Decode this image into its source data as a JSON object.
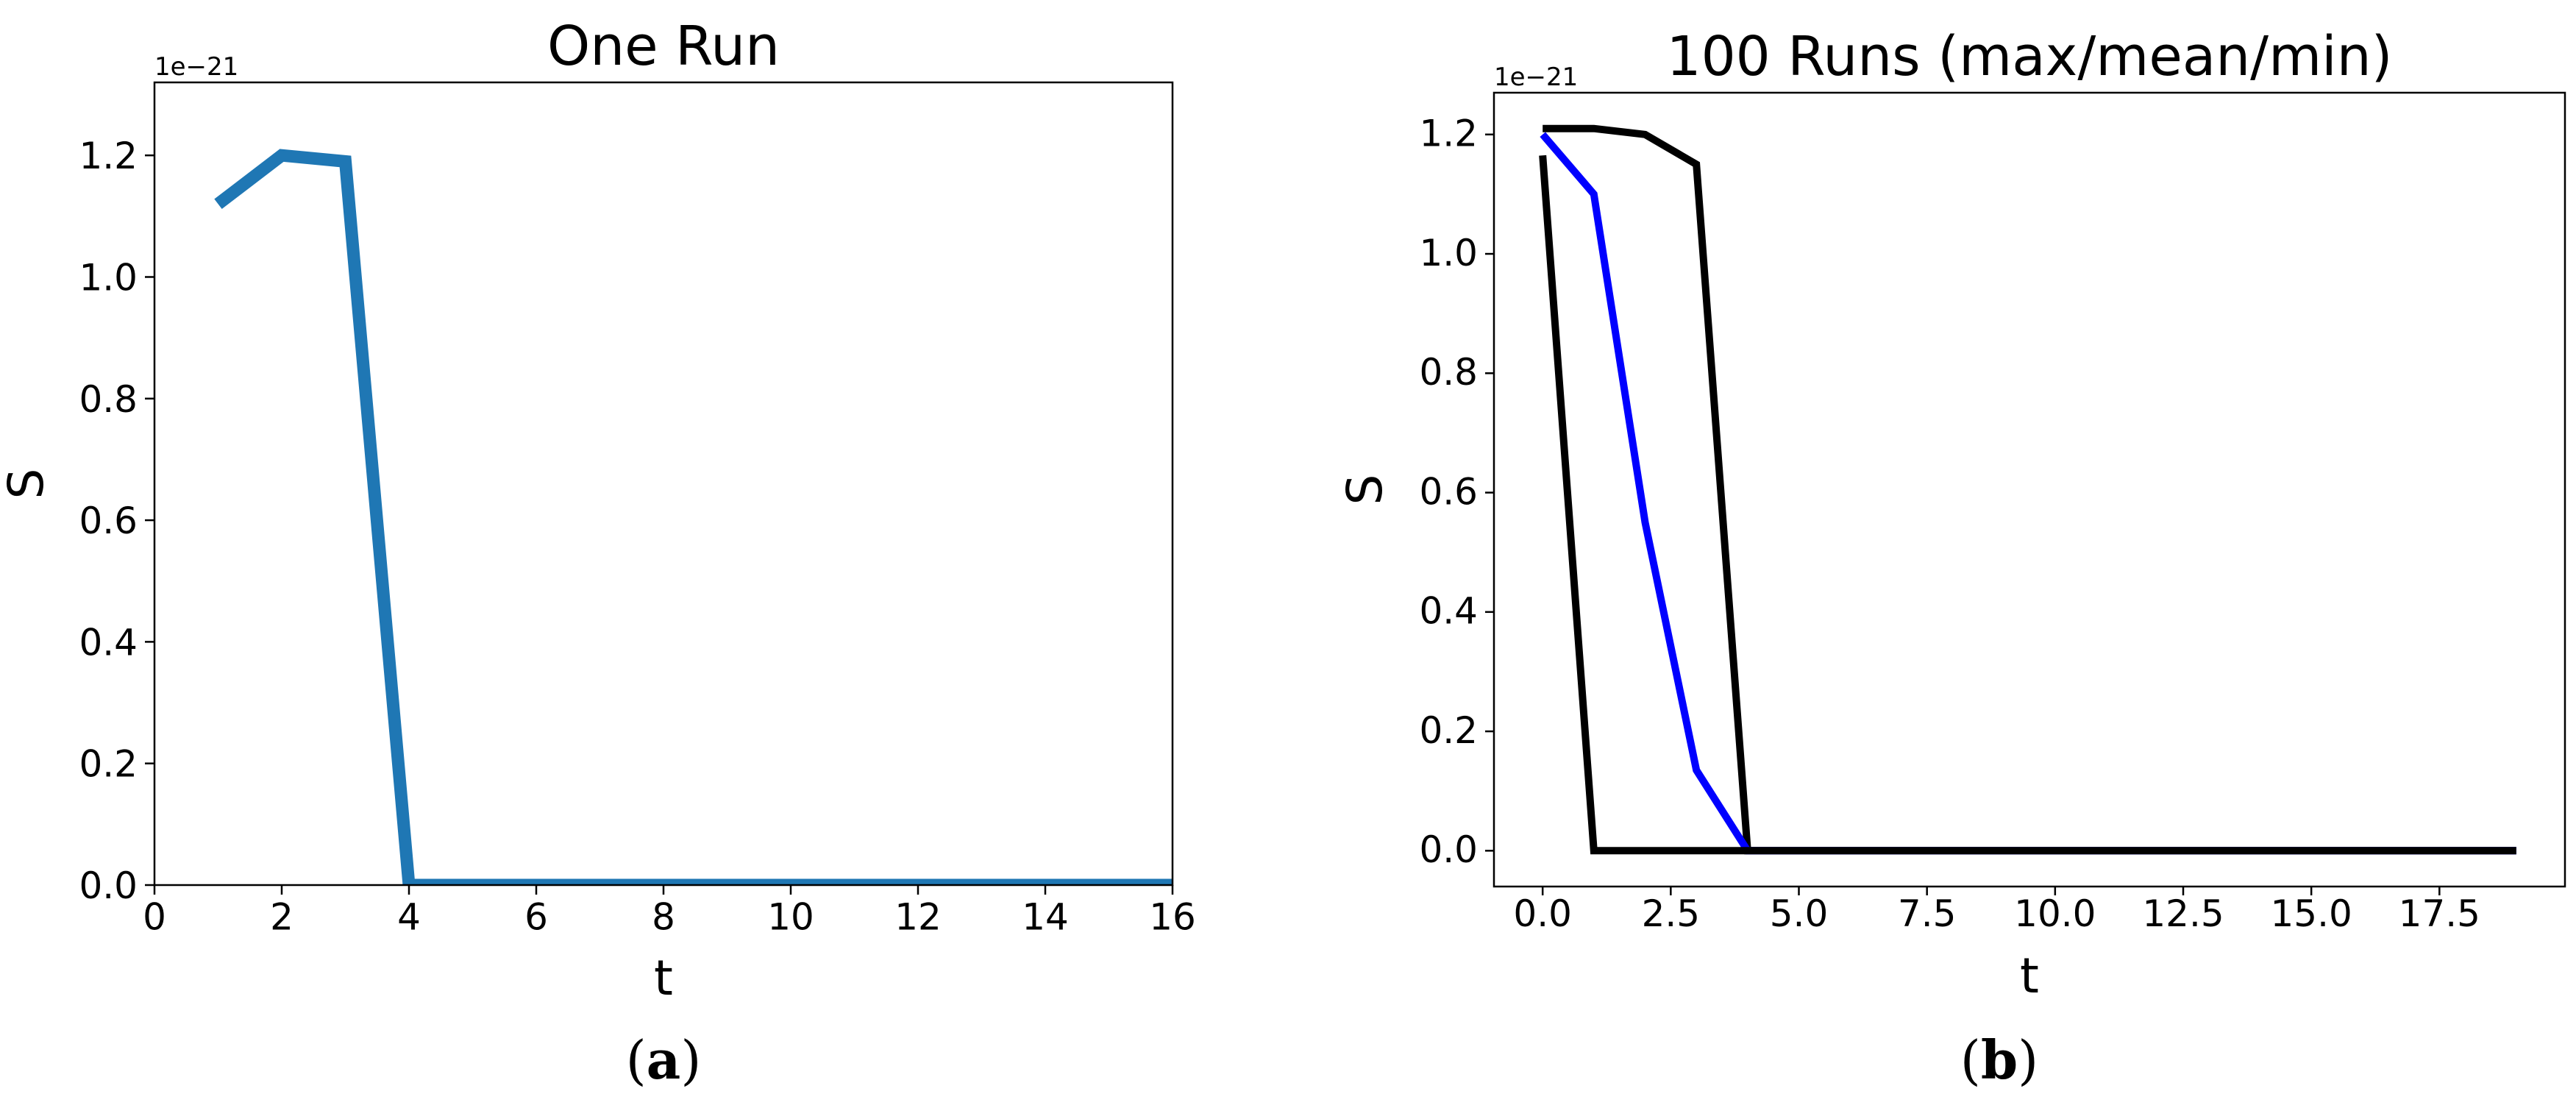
{
  "figure": {
    "captions": [
      {
        "open": "(",
        "letter": "a",
        "close": ")"
      },
      {
        "open": "(",
        "letter": "b",
        "close": ")"
      }
    ]
  },
  "chart_data": [
    {
      "type": "line",
      "title": "One Run",
      "xlabel": "t",
      "ylabel": "S",
      "offset_text": "1e−21",
      "xlim": [
        0,
        16
      ],
      "ylim": [
        0,
        1.32
      ],
      "xticks": [
        0,
        2,
        4,
        6,
        8,
        10,
        12,
        14,
        16
      ],
      "xtick_labels": [
        "0",
        "2",
        "4",
        "6",
        "8",
        "10",
        "12",
        "14",
        "16"
      ],
      "yticks": [
        0,
        0.2,
        0.4,
        0.6,
        0.8,
        1.0,
        1.2
      ],
      "ytick_labels": [
        "0.0",
        "0.2",
        "0.4",
        "0.6",
        "0.8",
        "1.0",
        "1.2"
      ],
      "grid": false,
      "series": [
        {
          "color": "#1f77b4",
          "x": [
            1,
            2,
            3,
            4,
            5,
            6,
            7,
            8,
            9,
            10,
            11,
            12,
            13,
            14,
            15,
            16
          ],
          "y": [
            1.12,
            1.2,
            1.19,
            0,
            0,
            0,
            0,
            0,
            0,
            0,
            0,
            0,
            0,
            0,
            0,
            0
          ]
        }
      ]
    },
    {
      "type": "line",
      "title": "100 Runs (max/mean/min)",
      "xlabel": "t",
      "ylabel": "S",
      "offset_text": "1e−21",
      "xlim": [
        -0.95,
        19.95
      ],
      "ylim": [
        -0.06,
        1.27
      ],
      "xticks": [
        0,
        2.5,
        5,
        7.5,
        10,
        12.5,
        15,
        17.5
      ],
      "xtick_labels": [
        "0.0",
        "2.5",
        "5.0",
        "7.5",
        "10.0",
        "12.5",
        "15.0",
        "17.5"
      ],
      "yticks": [
        0,
        0.2,
        0.4,
        0.6,
        0.8,
        1.0,
        1.2
      ],
      "ytick_labels": [
        "0.0",
        "0.2",
        "0.4",
        "0.6",
        "0.8",
        "1.0",
        "1.2"
      ],
      "grid": false,
      "series": [
        {
          "color": "#000000",
          "x": [
            0,
            1,
            2,
            3,
            4,
            5,
            6,
            7,
            8,
            9,
            10,
            11,
            12,
            13,
            14,
            15,
            16,
            17,
            18,
            19
          ],
          "y": [
            1.21,
            1.21,
            1.2,
            1.15,
            0,
            0,
            0,
            0,
            0,
            0,
            0,
            0,
            0,
            0,
            0,
            0,
            0,
            0,
            0,
            0
          ]
        },
        {
          "color": "#0000ff",
          "x": [
            0,
            1,
            2,
            3,
            4,
            5,
            6,
            7,
            8,
            9,
            10,
            11,
            12,
            13,
            14,
            15,
            16,
            17,
            18,
            19
          ],
          "y": [
            1.2,
            1.1,
            0.55,
            0.135,
            0,
            0,
            0,
            0,
            0,
            0,
            0,
            0,
            0,
            0,
            0,
            0,
            0,
            0,
            0,
            0
          ]
        },
        {
          "color": "#000000",
          "x": [
            0,
            1,
            2,
            3,
            4,
            5,
            6,
            7,
            8,
            9,
            10,
            11,
            12,
            13,
            14,
            15,
            16,
            17,
            18,
            19
          ],
          "y": [
            1.165,
            0,
            0,
            0,
            0,
            0,
            0,
            0,
            0,
            0,
            0,
            0,
            0,
            0,
            0,
            0,
            0,
            0,
            0,
            0
          ]
        }
      ]
    }
  ]
}
